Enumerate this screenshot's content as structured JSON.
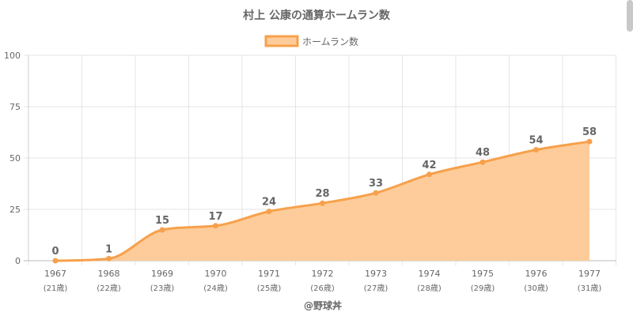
{
  "chart_data": {
    "type": "area",
    "title": "村上 公康の通算ホームラン数",
    "legend": {
      "label": "ホームラン数",
      "position": "top"
    },
    "categories": [
      "1967",
      "1968",
      "1969",
      "1970",
      "1971",
      "1972",
      "1973",
      "1974",
      "1975",
      "1976",
      "1977"
    ],
    "category_sublabels": [
      "(21歳)",
      "(22歳)",
      "(23歳)",
      "(24歳)",
      "(25歳)",
      "(26歳)",
      "(27歳)",
      "(28歳)",
      "(29歳)",
      "(30歳)",
      "(31歳)"
    ],
    "series": [
      {
        "name": "ホームラン数",
        "values": [
          0,
          1,
          15,
          17,
          24,
          28,
          33,
          42,
          48,
          54,
          58
        ]
      }
    ],
    "data_labels": [
      "0",
      "1",
      "15",
      "17",
      "24",
      "28",
      "33",
      "42",
      "48",
      "54",
      "58"
    ],
    "y_ticks": [
      "0",
      "25",
      "50",
      "75",
      "100"
    ],
    "ylim": [
      0,
      100
    ],
    "grid": true,
    "colors": {
      "line": "#f7a04b",
      "fill": "#fdcc9a",
      "grid": "#e6e6e6",
      "text": "#666666"
    }
  },
  "footer": "@野球丼"
}
